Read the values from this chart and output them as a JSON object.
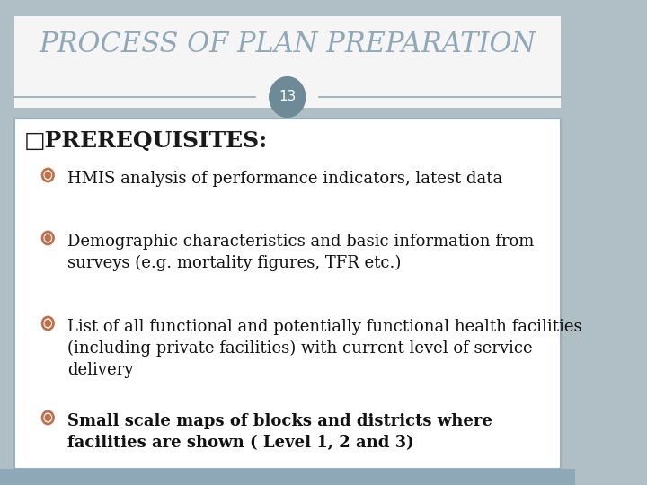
{
  "title": "PROCESS OF PLAN PREPARATION",
  "slide_number": "13",
  "title_color": "#8fa8b8",
  "background_color": "#b0bec5",
  "content_bg_color": "#ffffff",
  "header_line_color": "#8fa8b8",
  "circle_color": "#6d8a96",
  "circle_text_color": "#ffffff",
  "bullet_circle_color": "#c0704a",
  "heading": "□PREREQUISITES:",
  "heading_color": "#1a1a1a",
  "heading_fontsize": 18,
  "bullet_items": [
    {
      "text": "HMIS analysis of performance indicators, latest data",
      "bold": false,
      "fontsize": 13
    },
    {
      "text": "Demographic characteristics and basic information from\nsurveys (e.g. mortality figures, TFR etc.)",
      "bold": false,
      "fontsize": 13
    },
    {
      "text": "List of all functional and potentially functional health facilities\n(including private facilities) with current level of service\ndelivery",
      "bold": false,
      "fontsize": 13
    },
    {
      "text": "Small scale maps of blocks and districts where\nfacilities are shown ( Level 1, 2 and 3)",
      "bold": true,
      "fontsize": 13
    }
  ]
}
